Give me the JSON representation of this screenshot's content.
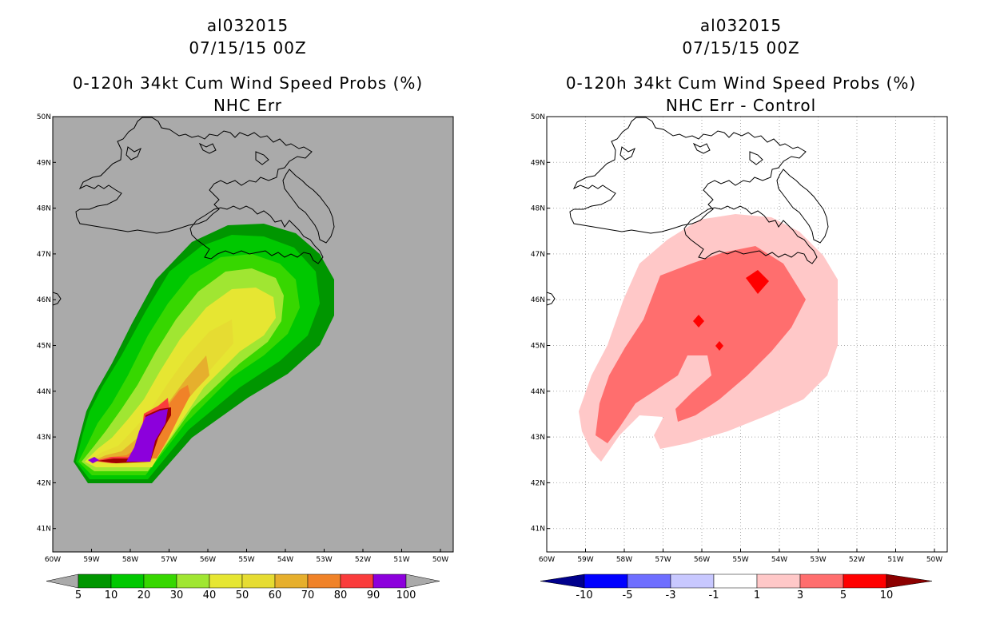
{
  "left_panel": {
    "storm_id": "al032015",
    "datetime": "07/15/15 00Z",
    "product": "0-120h 34kt Cum Wind Speed Probs (%)",
    "subtitle": "NHC Err",
    "background_color": "#aaaaaa",
    "colorbar": {
      "labels": [
        "5",
        "10",
        "20",
        "30",
        "40",
        "50",
        "60",
        "70",
        "80",
        "90",
        "100"
      ],
      "colors": [
        "#009600",
        "#00c800",
        "#37d700",
        "#a0e632",
        "#e6e632",
        "#e6dc32",
        "#e6af2d",
        "#f08228",
        "#fa3c3c",
        "#a00000",
        "#8c00dc"
      ]
    }
  },
  "right_panel": {
    "storm_id": "al032015",
    "datetime": "07/15/15 00Z",
    "product": "0-120h 34kt Cum Wind Speed Probs (%)",
    "subtitle": "NHC Err - Control",
    "background_color": "#ffffff",
    "colorbar": {
      "labels": [
        "-10",
        "-5",
        "-3",
        "-1",
        "1",
        "3",
        "5",
        "10"
      ],
      "colors": [
        "#00008c",
        "#0000ff",
        "#6e6eff",
        "#c8c8ff",
        "#ffffff",
        "#ffc8c8",
        "#ff6e6e",
        "#ff0000",
        "#8c0000"
      ]
    }
  },
  "axes": {
    "lon_ticks": [
      "60W",
      "59W",
      "58W",
      "57W",
      "56W",
      "55W",
      "54W",
      "53W",
      "52W",
      "51W",
      "50W"
    ],
    "lat_ticks": [
      "50N",
      "49N",
      "48N",
      "47N",
      "46N",
      "45N",
      "44N",
      "43N",
      "42N",
      "41N"
    ]
  }
}
